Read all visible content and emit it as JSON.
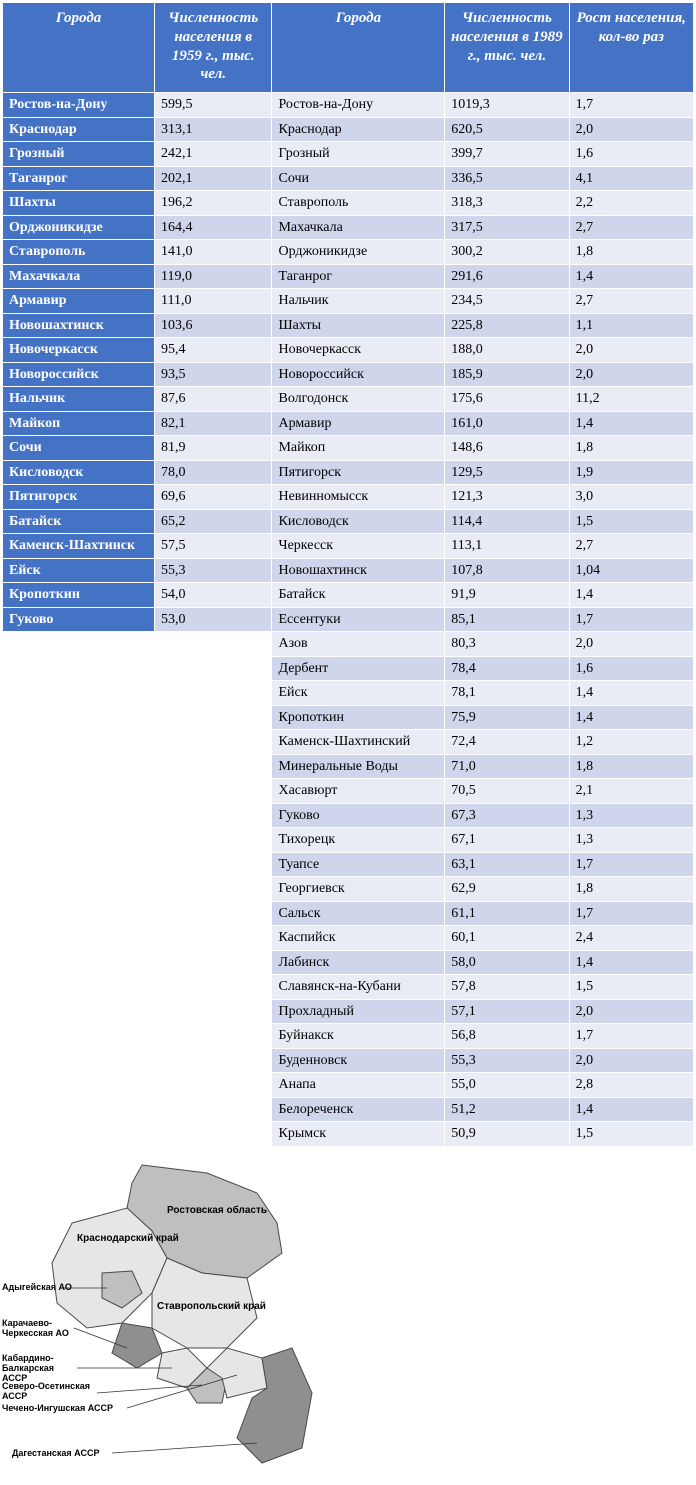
{
  "headers": {
    "c1": "Города",
    "c2": "Численность населения в 1959 г., тыс. чел.",
    "c3": "Города",
    "c4": "Численность населения в 1989 г., тыс. чел.",
    "c5": "Рост населения, кол-во раз"
  },
  "rows1959": [
    {
      "city": "Ростов-на-Дону",
      "pop": "599,5"
    },
    {
      "city": "Краснодар",
      "pop": "313,1"
    },
    {
      "city": "Грозный",
      "pop": "242,1"
    },
    {
      "city": "Таганрог",
      "pop": "202,1"
    },
    {
      "city": "Шахты",
      "pop": "196,2"
    },
    {
      "city": "Орджоникидзе",
      "pop": "164,4"
    },
    {
      "city": "Ставрополь",
      "pop": "141,0"
    },
    {
      "city": "Махачкала",
      "pop": "119,0"
    },
    {
      "city": "Армавир",
      "pop": "111,0"
    },
    {
      "city": "Новошахтинск",
      "pop": "103,6"
    },
    {
      "city": "Новочеркасск",
      "pop": "95,4"
    },
    {
      "city": "Новороссийск",
      "pop": "93,5"
    },
    {
      "city": "Нальчик",
      "pop": "87,6"
    },
    {
      "city": "Майкоп",
      "pop": "82,1"
    },
    {
      "city": "Сочи",
      "pop": "81,9"
    },
    {
      "city": "Кисловодск",
      "pop": "78,0"
    },
    {
      "city": "Пятигорск",
      "pop": "69,6"
    },
    {
      "city": "Батайск",
      "pop": "65,2"
    },
    {
      "city": "Каменск-Шахтинск",
      "pop": "57,5"
    },
    {
      "city": "Ейск",
      "pop": "55,3"
    },
    {
      "city": "Кропоткин",
      "pop": "54,0"
    },
    {
      "city": "Гуково",
      "pop": "53,0"
    }
  ],
  "rows1989": [
    {
      "city": "Ростов-на-Дону",
      "pop": "1019,3",
      "growth": "1,7"
    },
    {
      "city": "Краснодар",
      "pop": "620,5",
      "growth": "2,0"
    },
    {
      "city": "Грозный",
      "pop": "399,7",
      "growth": "1,6"
    },
    {
      "city": "Сочи",
      "pop": "336,5",
      "growth": "4,1"
    },
    {
      "city": "Ставрополь",
      "pop": "318,3",
      "growth": "2,2"
    },
    {
      "city": "Махачкала",
      "pop": "317,5",
      "growth": "2,7"
    },
    {
      "city": "Орджоникидзе",
      "pop": "300,2",
      "growth": "1,8"
    },
    {
      "city": "Таганрог",
      "pop": "291,6",
      "growth": "1,4"
    },
    {
      "city": "Нальчик",
      "pop": "234,5",
      "growth": "2,7"
    },
    {
      "city": "Шахты",
      "pop": "225,8",
      "growth": "1,1"
    },
    {
      "city": "Новочеркасск",
      "pop": "188,0",
      "growth": "2,0"
    },
    {
      "city": "Новороссийск",
      "pop": "185,9",
      "growth": "2,0"
    },
    {
      "city": "Волгодонск",
      "pop": "175,6",
      "growth": "11,2"
    },
    {
      "city": "Армавир",
      "pop": "161,0",
      "growth": "1,4"
    },
    {
      "city": "Майкоп",
      "pop": "148,6",
      "growth": "1,8"
    },
    {
      "city": "Пятигорск",
      "pop": "129,5",
      "growth": "1,9"
    },
    {
      "city": "Невинномысск",
      "pop": "121,3",
      "growth": "3,0"
    },
    {
      "city": "Кисловодск",
      "pop": "114,4",
      "growth": "1,5"
    },
    {
      "city": "Черкесск",
      "pop": "113,1",
      "growth": "2,7"
    },
    {
      "city": "Новошахтинск",
      "pop": "107,8",
      "growth": "1,04"
    },
    {
      "city": "Батайск",
      "pop": "91,9",
      "growth": "1,4"
    },
    {
      "city": "Ессентуки",
      "pop": "85,1",
      "growth": "1,7"
    },
    {
      "city": "Азов",
      "pop": "80,3",
      "growth": "2,0"
    },
    {
      "city": "Дербент",
      "pop": "78,4",
      "growth": "1,6"
    },
    {
      "city": "Ейск",
      "pop": "78,1",
      "growth": "1,4"
    },
    {
      "city": "Кропоткин",
      "pop": "75,9",
      "growth": "1,4"
    },
    {
      "city": "Каменск-Шахтинский",
      "pop": "72,4",
      "growth": "1,2"
    },
    {
      "city": "Минеральные Воды",
      "pop": "71,0",
      "growth": "1,8"
    },
    {
      "city": "Хасавюрт",
      "pop": "70,5",
      "growth": "2,1"
    },
    {
      "city": "Гуково",
      "pop": "67,3",
      "growth": "1,3"
    },
    {
      "city": "Тихорецк",
      "pop": "67,1",
      "growth": "1,3"
    },
    {
      "city": "Туапсе",
      "pop": "63,1",
      "growth": "1,7"
    },
    {
      "city": "Георгиевск",
      "pop": "62,9",
      "growth": "1,8"
    },
    {
      "city": "Сальск",
      "pop": "61,1",
      "growth": "1,7"
    },
    {
      "city": "Каспийск",
      "pop": "60,1",
      "growth": "2,4"
    },
    {
      "city": "Лабинск",
      "pop": "58,0",
      "growth": "1,4"
    },
    {
      "city": "Славянск-на-Кубани",
      "pop": "57,8",
      "growth": "1,5"
    },
    {
      "city": "Прохладный",
      "pop": "57,1",
      "growth": "2,0"
    },
    {
      "city": "Буйнакск",
      "pop": "56,8",
      "growth": "1,7"
    },
    {
      "city": "Буденновск",
      "pop": "55,3",
      "growth": "2,0"
    },
    {
      "city": "Анапа",
      "pop": "55,0",
      "growth": "2,8"
    },
    {
      "city": "Белореченск",
      "pop": "51,2",
      "growth": "1,4"
    },
    {
      "city": "Крымск",
      "pop": "50,9",
      "growth": "1,5"
    }
  ],
  "colors": {
    "header_bg": "#4472c4",
    "header_fg": "#ffffff",
    "city1_bg": "#4472c4",
    "city1_fg": "#ffffff",
    "row_even": "#cfd5ea",
    "row_odd": "#e9ebf5",
    "border": "#ffffff"
  },
  "map": {
    "labels": {
      "rostov": "Ростовская область",
      "krasnodar": "Краснодарский край",
      "adyg": "Адыгейская АО",
      "stavropol": "Ставропольский край",
      "karachay": "Карачаево-Черкесская АО",
      "kabardino": "Кабардино-Балкарская АССР",
      "severo": "Северо-Осетинская АССР",
      "checheno": "Чечено-Ингушская АССР",
      "dagestan": "Дагестанская АССР"
    },
    "region_colors": {
      "light": "#e6e6e6",
      "mid": "#bfbfbf",
      "dark": "#8f8f8f",
      "stroke": "#4a4a4a"
    }
  }
}
